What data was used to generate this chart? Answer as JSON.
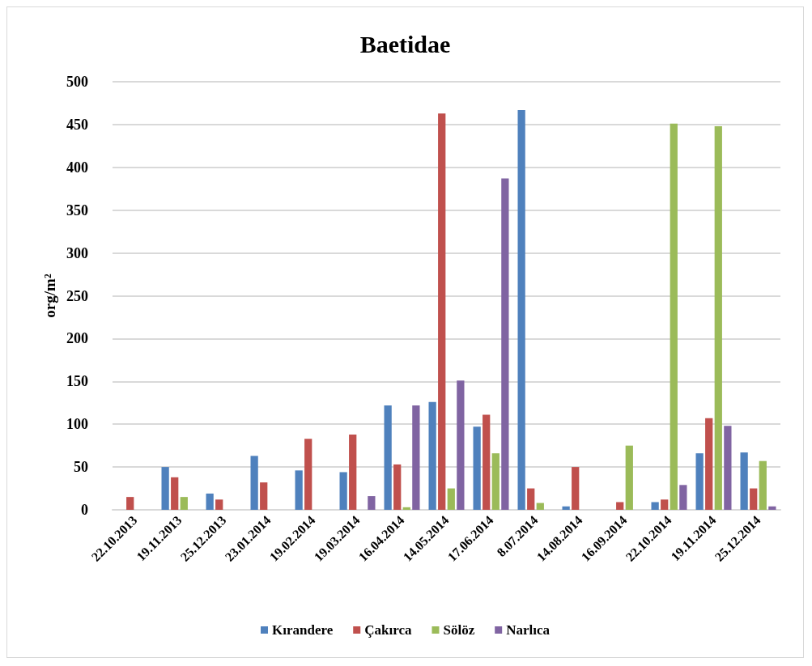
{
  "chart_data": {
    "type": "bar",
    "title": "Baetidae",
    "ylabel": "org/m²",
    "categories": [
      "22.10.2013",
      "19.11.2013",
      "25.12.2013",
      "23.01.2014",
      "19.02.2014",
      "19.03.2014",
      "16.04.2014",
      "14.05.2014",
      "17.06.2014",
      "8.07.2014",
      "14.08.2014",
      "16.09.2014",
      "22.10.2014",
      "19.11.2014",
      "25.12.2014"
    ],
    "series": [
      {
        "name": "Kırandere",
        "color": "#4f81bd",
        "values": [
          0,
          50,
          19,
          63,
          46,
          44,
          122,
          126,
          97,
          467,
          4,
          0,
          9,
          66,
          67
        ]
      },
      {
        "name": "Çakırca",
        "color": "#c0504d",
        "values": [
          15,
          38,
          12,
          32,
          83,
          88,
          53,
          463,
          111,
          25,
          50,
          9,
          12,
          107,
          25
        ]
      },
      {
        "name": "Sölöz",
        "color": "#9bbb59",
        "values": [
          0,
          15,
          0,
          0,
          0,
          0,
          3,
          25,
          66,
          8,
          0,
          75,
          451,
          448,
          57
        ]
      },
      {
        "name": "Narlıca",
        "color": "#8064a2",
        "values": [
          0,
          0,
          0,
          0,
          0,
          16,
          122,
          151,
          387,
          0,
          0,
          0,
          29,
          98,
          4
        ]
      }
    ],
    "ylim": [
      0,
      500
    ],
    "yticks": [
      0,
      50,
      100,
      150,
      200,
      250,
      300,
      350,
      400,
      450,
      500
    ],
    "grid": "y",
    "legend": "bottom"
  }
}
